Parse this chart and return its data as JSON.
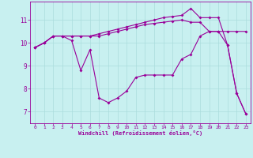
{
  "title": "",
  "xlabel": "Windchill (Refroidissement éolien,°C)",
  "background_color": "#c8f0f0",
  "line_color": "#990099",
  "grid_color": "#aadddd",
  "x": [
    0,
    1,
    2,
    3,
    4,
    5,
    6,
    7,
    8,
    9,
    10,
    11,
    12,
    13,
    14,
    15,
    16,
    17,
    18,
    19,
    20,
    21,
    22,
    23
  ],
  "series1": [
    9.8,
    10.0,
    10.3,
    10.3,
    10.1,
    8.8,
    9.7,
    7.6,
    7.4,
    7.6,
    7.9,
    8.5,
    8.6,
    8.6,
    8.6,
    8.6,
    9.3,
    9.5,
    10.3,
    10.5,
    10.5,
    9.9,
    7.8,
    6.9
  ],
  "series2": [
    9.8,
    10.0,
    10.3,
    10.3,
    10.3,
    10.3,
    10.3,
    10.3,
    10.4,
    10.5,
    10.6,
    10.7,
    10.8,
    10.85,
    10.9,
    10.95,
    11.0,
    10.9,
    10.9,
    10.5,
    10.5,
    10.5,
    10.5,
    10.5
  ],
  "series3": [
    9.8,
    10.0,
    10.3,
    10.3,
    10.3,
    10.3,
    10.3,
    10.4,
    10.5,
    10.6,
    10.7,
    10.8,
    10.9,
    11.0,
    11.1,
    11.15,
    11.2,
    11.5,
    11.1,
    11.1,
    11.1,
    9.9,
    7.8,
    6.9
  ],
  "ylim": [
    6.5,
    11.8
  ],
  "yticks": [
    7,
    8,
    9,
    10,
    11
  ],
  "xticks": [
    0,
    1,
    2,
    3,
    4,
    5,
    6,
    7,
    8,
    9,
    10,
    11,
    12,
    13,
    14,
    15,
    16,
    17,
    18,
    19,
    20,
    21,
    22,
    23
  ]
}
